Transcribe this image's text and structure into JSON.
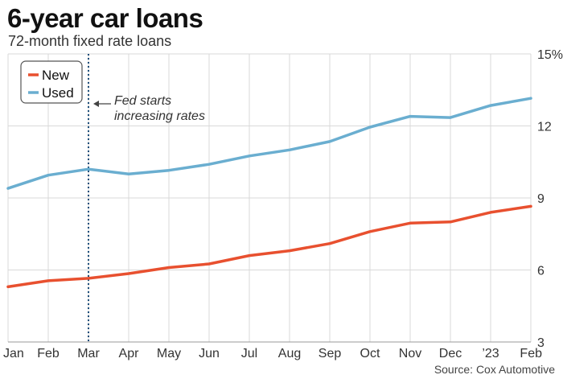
{
  "header": {
    "title": "6-year car loans",
    "subtitle": "72-month fixed rate loans"
  },
  "footer": {
    "source": "Source: Cox Automotive"
  },
  "annotation": {
    "line1": "Fed starts",
    "line2": "increasing rates",
    "at_category": "Mar"
  },
  "colors": {
    "new": "#e8502f",
    "used": "#6aaed0",
    "grid": "#d9d9d9",
    "marker": "#1d4e7a"
  },
  "chart_data": {
    "type": "line",
    "categories": [
      "Jan",
      "Feb",
      "Mar",
      "Apr",
      "May",
      "Jun",
      "Jul",
      "Aug",
      "Sep",
      "Oct",
      "Nov",
      "Dec",
      "’23",
      "Feb"
    ],
    "series": [
      {
        "name": "New",
        "values": [
          5.3,
          5.55,
          5.65,
          5.85,
          6.1,
          6.25,
          6.6,
          6.8,
          7.1,
          7.6,
          7.95,
          8.0,
          8.4,
          8.65
        ]
      },
      {
        "name": "Used",
        "values": [
          9.4,
          9.95,
          10.2,
          10.0,
          10.15,
          10.4,
          10.75,
          11.0,
          11.35,
          11.95,
          12.4,
          12.35,
          12.85,
          13.15
        ]
      }
    ],
    "y_ticks": [
      "3",
      "6",
      "9",
      "12",
      "15%"
    ],
    "ylim": [
      3,
      15
    ],
    "legend_position": "top-left",
    "grid": "vertical-and-horizontal"
  }
}
